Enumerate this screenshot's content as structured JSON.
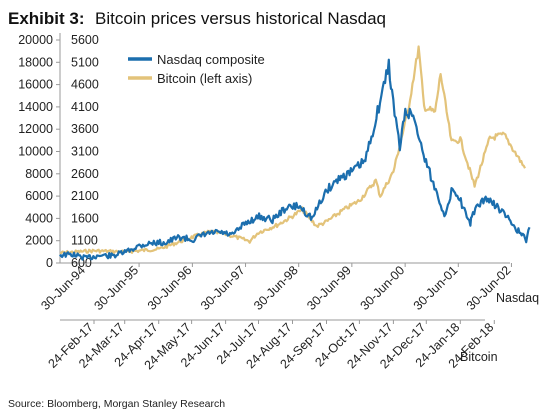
{
  "header": {
    "exhibit": "Exhibit 3:",
    "title": "Bitcoin prices versus historical Nasdaq"
  },
  "source": "Source: Bloomberg, Morgan Stanley Research",
  "colors": {
    "nasdaq": "#1b6eae",
    "bitcoin": "#e3c37a",
    "axis": "#999999",
    "text": "#222222"
  },
  "chart_data": {
    "type": "line",
    "title": "Bitcoin prices versus historical Nasdaq",
    "legend": {
      "placement": "top-left",
      "entries": [
        "Nasdaq composite",
        "Bitcoin (left axis)"
      ]
    },
    "left_axis": {
      "ylim": [
        0,
        20000
      ],
      "ticks": [
        "0",
        "2000",
        "4000",
        "6000",
        "8000",
        "10000",
        "12000",
        "14000",
        "16000",
        "18000",
        "20000"
      ]
    },
    "right_axis": {
      "ylim": [
        600,
        5600
      ],
      "ticks": [
        "600",
        "1100",
        "1600",
        "2100",
        "2600",
        "3100",
        "3600",
        "4100",
        "4600",
        "5100",
        "5600"
      ]
    },
    "nasdaq_axis": {
      "label": "Nasdaq",
      "ticks": [
        "30-Jun-94",
        "30-Jun-95",
        "30-Jun-96",
        "30-Jun-97",
        "30-Jun-98",
        "30-Jun-99",
        "30-Jun-00",
        "30-Jun-01",
        "30-Jun-02"
      ]
    },
    "bitcoin_axis": {
      "label": "Bitcoin",
      "ticks": [
        "24-Feb-17",
        "24-Mar-17",
        "24-Apr-17",
        "24-May-17",
        "24-Jun-17",
        "24-Jul-17",
        "24-Aug-17",
        "24-Sep-17",
        "24-Oct-17",
        "24-Nov-17",
        "24-Dec-17",
        "24-Jan-18",
        "24-Feb-18"
      ]
    },
    "series": [
      {
        "name": "Nasdaq composite",
        "axis": "right",
        "x_start": "1994-01-03",
        "x_end": "2002-10-01",
        "x": [
          "1994-01-01",
          "1994-04-01",
          "1994-07-01",
          "1994-10-01",
          "1995-01-01",
          "1995-04-01",
          "1995-07-01",
          "1995-10-01",
          "1996-01-01",
          "1996-04-01",
          "1996-07-01",
          "1996-10-01",
          "1997-01-01",
          "1997-04-01",
          "1997-07-01",
          "1997-10-01",
          "1998-01-01",
          "1998-04-01",
          "1998-07-01",
          "1998-10-01",
          "1999-01-01",
          "1999-04-01",
          "1999-07-01",
          "1999-10-01",
          "2000-01-01",
          "2000-03-10",
          "2000-04-01",
          "2000-05-24",
          "2000-07-01",
          "2000-09-01",
          "2000-10-01",
          "2001-01-01",
          "2001-04-04",
          "2001-05-22",
          "2001-07-01",
          "2001-09-21",
          "2001-10-01",
          "2002-01-04",
          "2002-04-01",
          "2002-07-01",
          "2002-09-01",
          "2002-10-09",
          "2002-11-01"
        ],
        "values": [
          780,
          790,
          710,
          770,
          760,
          850,
          990,
          1050,
          1060,
          1180,
          1120,
          1250,
          1290,
          1220,
          1500,
          1640,
          1570,
          1830,
          1880,
          1600,
          2200,
          2500,
          2650,
          2900,
          4100,
          5050,
          4400,
          3180,
          4000,
          3900,
          3400,
          2450,
          1640,
          2300,
          2120,
          1420,
          1700,
          2060,
          1840,
          1500,
          1250,
          1110,
          1400
        ]
      },
      {
        "name": "Bitcoin (left axis)",
        "axis": "left",
        "x_start": "2017-01-24",
        "x_end": "2018-03-24",
        "x": [
          "2017-01-24",
          "2017-02-24",
          "2017-03-24",
          "2017-04-24",
          "2017-05-10",
          "2017-05-24",
          "2017-06-10",
          "2017-06-24",
          "2017-07-16",
          "2017-07-24",
          "2017-08-10",
          "2017-08-24",
          "2017-09-02",
          "2017-09-15",
          "2017-09-24",
          "2017-10-10",
          "2017-10-24",
          "2017-11-08",
          "2017-11-12",
          "2017-11-24",
          "2017-12-07",
          "2017-12-17",
          "2017-12-22",
          "2018-01-01",
          "2018-01-06",
          "2018-01-16",
          "2018-01-24",
          "2018-02-06",
          "2018-02-20",
          "2018-03-05",
          "2018-03-24"
        ],
        "values": [
          900,
          1100,
          1000,
          1250,
          1800,
          2300,
          2800,
          2600,
          1950,
          2750,
          3400,
          4200,
          4800,
          3300,
          3700,
          4800,
          5600,
          7400,
          6000,
          8200,
          13500,
          19300,
          14000,
          13500,
          17000,
          10800,
          11100,
          6900,
          11200,
          11500,
          8500
        ]
      }
    ]
  }
}
